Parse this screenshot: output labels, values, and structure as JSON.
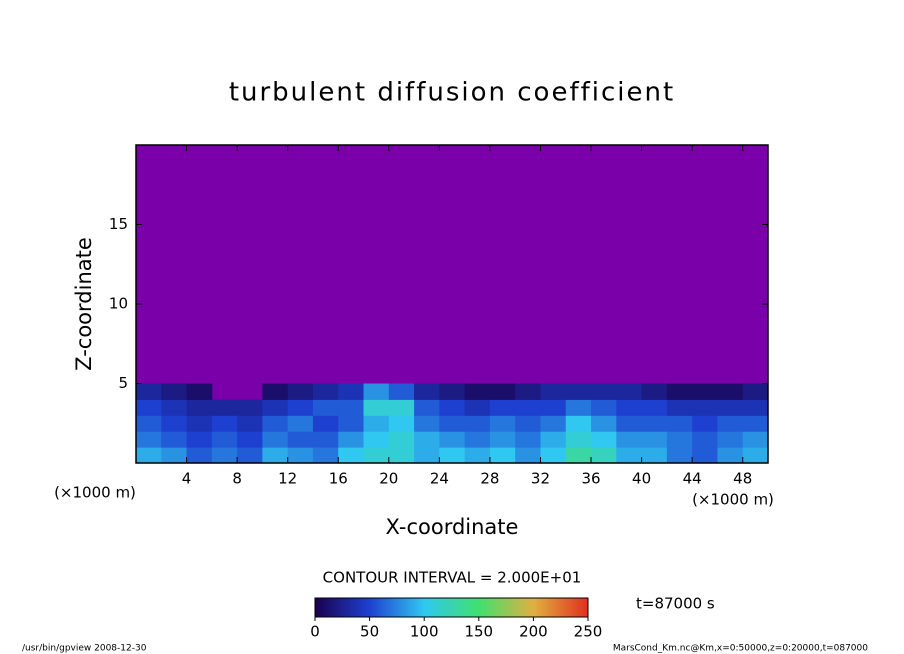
{
  "chart_data": {
    "type": "contour",
    "title": "turbulent diffusion coefficient",
    "xlabel": "X-coordinate",
    "ylabel": "Z-coordinate",
    "x_unit_label": "(×1000 m)",
    "y_unit_label": "(×1000 m)",
    "xlim": [
      0,
      50
    ],
    "xticks": [
      4,
      8,
      12,
      16,
      20,
      24,
      28,
      32,
      36,
      40,
      44,
      48
    ],
    "ylim": [
      0,
      20
    ],
    "yticks": [
      5,
      10,
      15
    ],
    "x": [
      1,
      3,
      5,
      7,
      9,
      11,
      13,
      15,
      17,
      19,
      21,
      23,
      25,
      27,
      29,
      31,
      33,
      35,
      37,
      39,
      41,
      43,
      45,
      47,
      49
    ],
    "z": [
      0.5,
      1.5,
      2.5,
      3.5,
      4.5
    ],
    "values": [
      [
        90,
        80,
        60,
        70,
        60,
        90,
        80,
        70,
        100,
        110,
        110,
        90,
        100,
        90,
        100,
        80,
        100,
        130,
        120,
        90,
        90,
        70,
        60,
        80,
        90
      ],
      [
        70,
        60,
        50,
        60,
        50,
        70,
        60,
        60,
        80,
        100,
        110,
        90,
        80,
        70,
        80,
        70,
        90,
        110,
        100,
        80,
        80,
        70,
        60,
        70,
        80
      ],
      [
        60,
        50,
        40,
        50,
        40,
        60,
        70,
        50,
        60,
        90,
        100,
        70,
        60,
        60,
        70,
        60,
        70,
        100,
        80,
        60,
        60,
        60,
        50,
        60,
        60
      ],
      [
        50,
        40,
        30,
        30,
        30,
        40,
        50,
        60,
        60,
        110,
        110,
        60,
        50,
        40,
        50,
        50,
        50,
        70,
        60,
        50,
        50,
        40,
        40,
        40,
        40
      ],
      [
        30,
        20,
        10,
        0,
        0,
        10,
        20,
        30,
        40,
        80,
        60,
        30,
        20,
        10,
        10,
        20,
        30,
        30,
        30,
        30,
        20,
        10,
        10,
        10,
        20
      ]
    ],
    "colorbar": {
      "lim": [
        0,
        250
      ],
      "ticks": [
        0,
        50,
        100,
        150,
        200,
        250
      ]
    },
    "contour_interval": "CONTOUR INTERVAL = 2.000E+01",
    "time_label": "t=87000 s",
    "footer_left": "/usr/bin/gpview   2008-12-30",
    "footer_right": "MarsCond_Km.nc@Km,x=0:50000,z=0:20000,t=087000"
  }
}
